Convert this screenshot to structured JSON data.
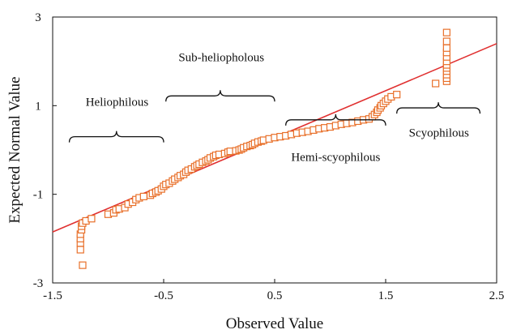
{
  "chart_data": {
    "type": "scatter",
    "title": "",
    "xlabel": "Observed Value",
    "ylabel": "Expected Normal Value",
    "xlim": [
      -1.5,
      2.5
    ],
    "ylim": [
      -3,
      3
    ],
    "x_ticks": [
      "-1.5",
      "-0.5",
      "0.5",
      "1.5",
      "2.5"
    ],
    "y_ticks": [
      "3",
      "1",
      "-1",
      "-3"
    ],
    "x_tick_values": [
      -1.5,
      -0.5,
      0.5,
      1.5,
      2.5
    ],
    "y_tick_values": [
      3,
      1,
      -1,
      -3
    ],
    "grid": false,
    "legend": "none",
    "marker": "open-square",
    "marker_color": "#e8702a",
    "line_color": "#e03030",
    "series": [
      {
        "name": "",
        "points": [
          [
            -1.23,
            -2.6
          ],
          [
            -1.25,
            -2.25
          ],
          [
            -1.25,
            -2.1
          ],
          [
            -1.25,
            -2.0
          ],
          [
            -1.25,
            -1.9
          ],
          [
            -1.24,
            -1.8
          ],
          [
            -1.24,
            -1.72
          ],
          [
            -1.23,
            -1.65
          ],
          [
            -1.2,
            -1.6
          ],
          [
            -1.15,
            -1.55
          ],
          [
            -1.0,
            -1.45
          ],
          [
            -0.95,
            -1.42
          ],
          [
            -0.93,
            -1.35
          ],
          [
            -0.9,
            -1.33
          ],
          [
            -0.85,
            -1.3
          ],
          [
            -0.82,
            -1.22
          ],
          [
            -0.78,
            -1.18
          ],
          [
            -0.75,
            -1.12
          ],
          [
            -0.72,
            -1.08
          ],
          [
            -0.68,
            -1.05
          ],
          [
            -0.62,
            -1.02
          ],
          [
            -0.6,
            -0.98
          ],
          [
            -0.57,
            -0.95
          ],
          [
            -0.55,
            -0.92
          ],
          [
            -0.52,
            -0.88
          ],
          [
            -0.5,
            -0.82
          ],
          [
            -0.48,
            -0.78
          ],
          [
            -0.45,
            -0.75
          ],
          [
            -0.42,
            -0.7
          ],
          [
            -0.4,
            -0.66
          ],
          [
            -0.37,
            -0.62
          ],
          [
            -0.35,
            -0.58
          ],
          [
            -0.32,
            -0.55
          ],
          [
            -0.3,
            -0.5
          ],
          [
            -0.28,
            -0.46
          ],
          [
            -0.25,
            -0.43
          ],
          [
            -0.22,
            -0.38
          ],
          [
            -0.2,
            -0.35
          ],
          [
            -0.18,
            -0.32
          ],
          [
            -0.15,
            -0.28
          ],
          [
            -0.12,
            -0.25
          ],
          [
            -0.1,
            -0.22
          ],
          [
            -0.08,
            -0.18
          ],
          [
            -0.05,
            -0.15
          ],
          [
            -0.03,
            -0.12
          ],
          [
            0.0,
            -0.1
          ],
          [
            0.05,
            -0.08
          ],
          [
            0.08,
            -0.05
          ],
          [
            0.1,
            -0.03
          ],
          [
            0.15,
            -0.02
          ],
          [
            0.18,
            0.0
          ],
          [
            0.2,
            0.02
          ],
          [
            0.22,
            0.05
          ],
          [
            0.25,
            0.08
          ],
          [
            0.28,
            0.1
          ],
          [
            0.3,
            0.12
          ],
          [
            0.32,
            0.15
          ],
          [
            0.35,
            0.18
          ],
          [
            0.38,
            0.2
          ],
          [
            0.4,
            0.22
          ],
          [
            0.45,
            0.25
          ],
          [
            0.5,
            0.28
          ],
          [
            0.55,
            0.3
          ],
          [
            0.6,
            0.32
          ],
          [
            0.65,
            0.35
          ],
          [
            0.7,
            0.38
          ],
          [
            0.75,
            0.4
          ],
          [
            0.8,
            0.42
          ],
          [
            0.85,
            0.45
          ],
          [
            0.9,
            0.48
          ],
          [
            0.95,
            0.5
          ],
          [
            1.0,
            0.52
          ],
          [
            1.05,
            0.55
          ],
          [
            1.1,
            0.58
          ],
          [
            1.15,
            0.6
          ],
          [
            1.2,
            0.62
          ],
          [
            1.25,
            0.65
          ],
          [
            1.3,
            0.68
          ],
          [
            1.35,
            0.7
          ],
          [
            1.38,
            0.75
          ],
          [
            1.4,
            0.8
          ],
          [
            1.42,
            0.85
          ],
          [
            1.43,
            0.9
          ],
          [
            1.45,
            0.95
          ],
          [
            1.46,
            1.0
          ],
          [
            1.48,
            1.05
          ],
          [
            1.5,
            1.1
          ],
          [
            1.52,
            1.15
          ],
          [
            1.55,
            1.2
          ],
          [
            1.6,
            1.25
          ],
          [
            1.95,
            1.5
          ],
          [
            2.05,
            1.55
          ],
          [
            2.05,
            1.62
          ],
          [
            2.05,
            1.7
          ],
          [
            2.05,
            1.78
          ],
          [
            2.05,
            1.85
          ],
          [
            2.05,
            1.92
          ],
          [
            2.05,
            2.0
          ],
          [
            2.05,
            2.1
          ],
          [
            2.05,
            2.2
          ],
          [
            2.05,
            2.3
          ],
          [
            2.05,
            2.45
          ],
          [
            2.05,
            2.65
          ]
        ]
      }
    ],
    "trend_line": {
      "x": [
        -1.5,
        2.5
      ],
      "y": [
        -1.85,
        2.4
      ]
    },
    "annotations": [
      {
        "id": "heliophilous",
        "label": "Heliophilous",
        "brace_x": [
          -1.35,
          -0.5
        ],
        "brace_y": 0.3,
        "text_x": -0.92,
        "text_y": 1.0
      },
      {
        "id": "sub-heliopholous",
        "label": "Sub-heliopholous",
        "brace_x": [
          -0.48,
          0.5
        ],
        "brace_y": 1.22,
        "text_x": 0.02,
        "text_y": 2.0
      },
      {
        "id": "hemi-scyophilous",
        "label": "Hemi-scyophilous",
        "brace_x": [
          0.6,
          1.5
        ],
        "brace_y": 0.68,
        "text_x": 1.05,
        "text_y": -0.25
      },
      {
        "id": "scyophilous",
        "label": "Scyophilous",
        "brace_x": [
          1.6,
          2.35
        ],
        "brace_y": 0.95,
        "text_x": 1.98,
        "text_y": 0.3
      }
    ]
  }
}
